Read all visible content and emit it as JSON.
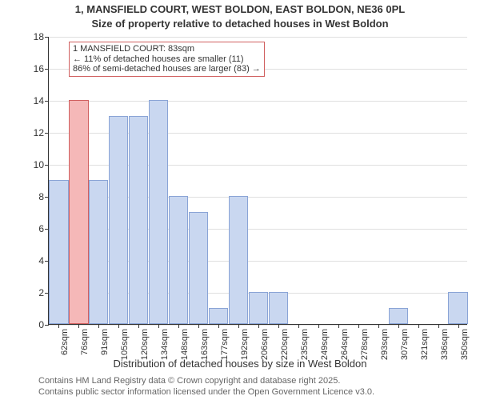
{
  "title_main": "1, MANSFIELD COURT, WEST BOLDON, EAST BOLDON, NE36 0PL",
  "title_sub": "Size of property relative to detached houses in West Boldon",
  "yaxis_label": "Number of detached properties",
  "xaxis_label": "Distribution of detached houses by size in West Boldon",
  "footer1": "Contains HM Land Registry data © Crown copyright and database right 2025.",
  "footer2": "Contains public sector information licensed under the Open Government Licence v3.0.",
  "chart": {
    "type": "bar",
    "ylim": [
      0,
      18
    ],
    "yticks": [
      0,
      2,
      4,
      6,
      8,
      10,
      12,
      14,
      16,
      18
    ],
    "grid_color": "#e0e0e0",
    "bar_fill": "#c9d7f0",
    "bar_stroke": "#8aa4d6",
    "highlight_fill": "#f5b8b8",
    "highlight_stroke": "#d06060",
    "background": "#ffffff",
    "categories": [
      "62sqm",
      "76sqm",
      "91sqm",
      "105sqm",
      "120sqm",
      "134sqm",
      "148sqm",
      "163sqm",
      "177sqm",
      "192sqm",
      "206sqm",
      "220sqm",
      "235sqm",
      "249sqm",
      "264sqm",
      "278sqm",
      "293sqm",
      "307sqm",
      "321sqm",
      "336sqm",
      "350sqm"
    ],
    "values": [
      9,
      14,
      9,
      13,
      13,
      14,
      8,
      7,
      1,
      8,
      2,
      2,
      0,
      0,
      0,
      0,
      0,
      1,
      0,
      0,
      2
    ],
    "highlight_index": 1,
    "bar_width_ratio": 0.97
  },
  "annotation": {
    "border_color": "#d06060",
    "lines": {
      "l1": "1 MANSFIELD COURT: 83sqm",
      "l2": "← 11% of detached houses are smaller (11)",
      "l3": "86% of semi-detached houses are larger (83) →"
    }
  }
}
